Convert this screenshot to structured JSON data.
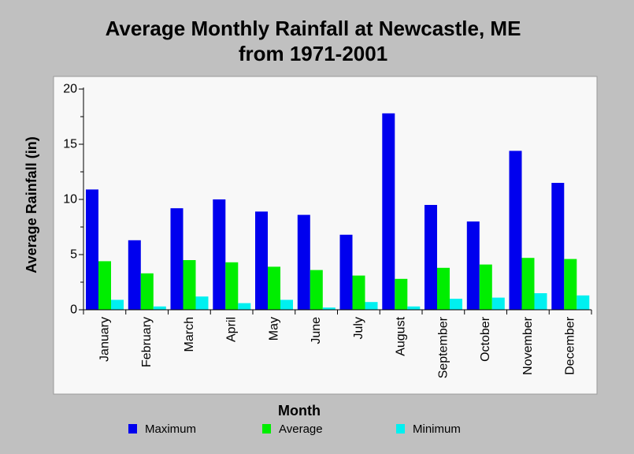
{
  "chart_data": {
    "type": "bar",
    "title_lines": [
      "Average Monthly Rainfall at Newcastle, ME",
      "from 1971-2001"
    ],
    "xlabel": "Month",
    "ylabel": "Average Rainfall (in)",
    "ylim": [
      0,
      20
    ],
    "yticks": [
      "0",
      "5",
      "10",
      "15",
      "20"
    ],
    "categories": [
      "January",
      "February",
      "March",
      "April",
      "May",
      "June",
      "July",
      "August",
      "September",
      "October",
      "November",
      "December"
    ],
    "series": [
      {
        "name": "Maximum",
        "color": "#0000ee",
        "values": [
          10.9,
          6.3,
          9.2,
          10.0,
          8.9,
          8.6,
          6.8,
          17.8,
          9.5,
          8.0,
          14.4,
          11.5
        ]
      },
      {
        "name": "Average",
        "color": "#00ee00",
        "values": [
          4.4,
          3.3,
          4.5,
          4.3,
          3.9,
          3.6,
          3.1,
          2.8,
          3.8,
          4.1,
          4.7,
          4.6
        ]
      },
      {
        "name": "Minimum",
        "color": "#00f0f0",
        "values": [
          0.9,
          0.3,
          1.2,
          0.6,
          0.9,
          0.2,
          0.7,
          0.3,
          1.0,
          1.1,
          1.5,
          1.3
        ]
      }
    ],
    "legend_position": "bottom",
    "grid": false
  }
}
